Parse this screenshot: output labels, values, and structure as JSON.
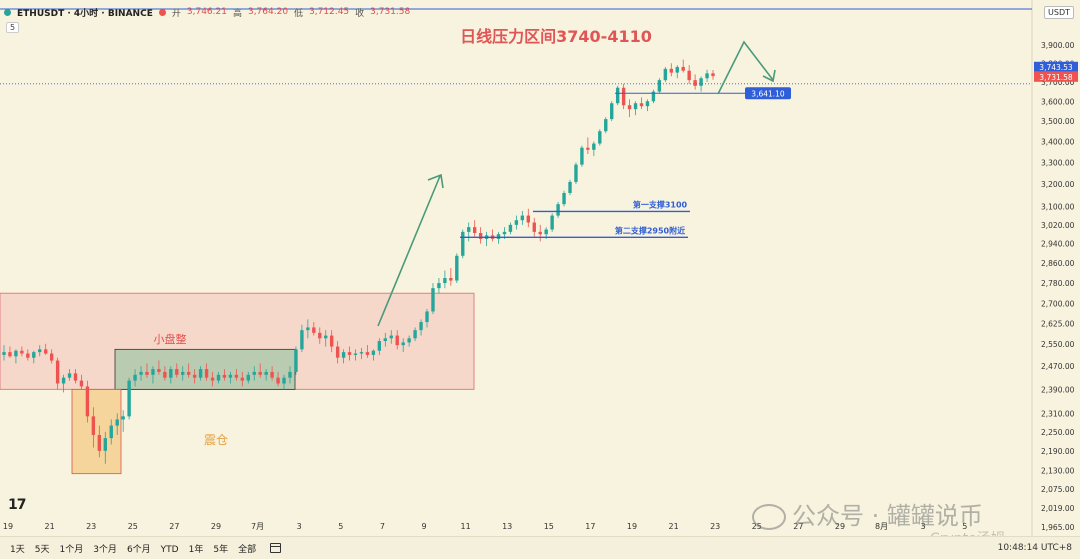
{
  "header": {
    "symbol": "ETHUSDT · 4小时 · BINANCE",
    "open_label": "开",
    "open": "3,746.21",
    "high_label": "高",
    "high": "3,764.20",
    "low_label": "低",
    "low": "3,712.45",
    "close_label": "收",
    "close": "3,731.58",
    "sub_indicator": "5",
    "unit": "USDT"
  },
  "annotations": {
    "title": "日线压力区间3740-4110",
    "consolidation": "小盘整",
    "shakeout": "震仓",
    "support1": "第一支撑3100",
    "support2": "第二支撑2950附近",
    "price_tag": "3,641.10"
  },
  "price_tags": {
    "current_high": "3,743.53",
    "current_close": "3,731.58"
  },
  "colors": {
    "up": "#26a69a",
    "down": "#ef5350",
    "title": "#e05555",
    "support": "#2f5ed8",
    "arrow": "#4a9a7a",
    "zone_red": "#f5cfc3",
    "zone_green": "#9fc8a8",
    "zone_orange": "#f6cf91"
  },
  "chart_data": {
    "type": "candlestick",
    "y_axis": {
      "scale": "log",
      "ticks": [
        "3,900.00",
        "3,800.00",
        "3,700.00",
        "3,600.00",
        "3,500.00",
        "3,400.00",
        "3,300.00",
        "3,200.00",
        "3,100.00",
        "3,020.00",
        "2,940.00",
        "2,860.00",
        "2,780.00",
        "2,700.00",
        "2,625.00",
        "2,550.00",
        "2,470.00",
        "2,390.00",
        "2,310.00",
        "2,250.00",
        "2,190.00",
        "2,130.00",
        "2,075.00",
        "2,019.00",
        "1,965.00"
      ]
    },
    "x_axis": {
      "ticks": [
        "19",
        "21",
        "23",
        "25",
        "27",
        "29",
        "7月",
        "3",
        "5",
        "7",
        "9",
        "11",
        "13",
        "15",
        "17",
        "19",
        "21",
        "23",
        "25",
        "27",
        "29",
        "8月",
        "3",
        "5"
      ]
    },
    "levels": {
      "support1": 3100,
      "support2": 2950,
      "marked_price": 3641.1,
      "current_high": 3743.53,
      "current_close": 3731.58
    },
    "zones": [
      {
        "label": "",
        "from": "19",
        "to": "11",
        "low": 2390,
        "high": 2740
      },
      {
        "label": "小盘整",
        "from": "24",
        "to": "3",
        "low": 2390,
        "high": 2530
      },
      {
        "label": "震仓",
        "from": "22",
        "to": "24",
        "low": 2120,
        "high": 2390
      }
    ],
    "candles": [
      [
        2510,
        2545,
        2490,
        2520
      ],
      [
        2520,
        2540,
        2500,
        2505
      ],
      [
        2505,
        2530,
        2480,
        2525
      ],
      [
        2525,
        2540,
        2505,
        2515
      ],
      [
        2515,
        2530,
        2490,
        2500
      ],
      [
        2500,
        2525,
        2480,
        2520
      ],
      [
        2520,
        2545,
        2505,
        2530
      ],
      [
        2530,
        2550,
        2510,
        2515
      ],
      [
        2515,
        2530,
        2480,
        2490
      ],
      [
        2490,
        2500,
        2390,
        2410
      ],
      [
        2410,
        2440,
        2380,
        2430
      ],
      [
        2430,
        2460,
        2420,
        2445
      ],
      [
        2445,
        2460,
        2410,
        2420
      ],
      [
        2420,
        2440,
        2390,
        2400
      ],
      [
        2400,
        2420,
        2280,
        2300
      ],
      [
        2300,
        2330,
        2200,
        2240
      ],
      [
        2240,
        2270,
        2170,
        2190
      ],
      [
        2190,
        2250,
        2150,
        2230
      ],
      [
        2230,
        2290,
        2210,
        2270
      ],
      [
        2270,
        2310,
        2240,
        2290
      ],
      [
        2290,
        2320,
        2250,
        2300
      ],
      [
        2300,
        2430,
        2290,
        2420
      ],
      [
        2420,
        2460,
        2400,
        2440
      ],
      [
        2440,
        2470,
        2420,
        2450
      ],
      [
        2450,
        2480,
        2430,
        2440
      ],
      [
        2440,
        2470,
        2410,
        2460
      ],
      [
        2460,
        2490,
        2440,
        2450
      ],
      [
        2450,
        2470,
        2420,
        2430
      ],
      [
        2430,
        2470,
        2410,
        2460
      ],
      [
        2460,
        2480,
        2430,
        2440
      ],
      [
        2440,
        2470,
        2420,
        2450
      ],
      [
        2450,
        2480,
        2430,
        2440
      ],
      [
        2440,
        2460,
        2410,
        2430
      ],
      [
        2430,
        2470,
        2420,
        2460
      ],
      [
        2460,
        2480,
        2420,
        2430
      ],
      [
        2430,
        2450,
        2400,
        2420
      ],
      [
        2420,
        2450,
        2410,
        2440
      ],
      [
        2440,
        2460,
        2420,
        2430
      ],
      [
        2430,
        2450,
        2410,
        2440
      ],
      [
        2440,
        2460,
        2420,
        2430
      ],
      [
        2430,
        2450,
        2400,
        2420
      ],
      [
        2420,
        2450,
        2410,
        2440
      ],
      [
        2440,
        2470,
        2420,
        2450
      ],
      [
        2450,
        2480,
        2430,
        2440
      ],
      [
        2440,
        2460,
        2420,
        2450
      ],
      [
        2450,
        2470,
        2420,
        2430
      ],
      [
        2430,
        2450,
        2400,
        2410
      ],
      [
        2410,
        2440,
        2390,
        2430
      ],
      [
        2430,
        2470,
        2410,
        2450
      ],
      [
        2450,
        2540,
        2440,
        2530
      ],
      [
        2530,
        2620,
        2520,
        2600
      ],
      [
        2600,
        2640,
        2570,
        2610
      ],
      [
        2610,
        2630,
        2580,
        2590
      ],
      [
        2590,
        2610,
        2550,
        2570
      ],
      [
        2570,
        2600,
        2540,
        2580
      ],
      [
        2580,
        2600,
        2520,
        2540
      ],
      [
        2540,
        2560,
        2480,
        2500
      ],
      [
        2500,
        2530,
        2480,
        2520
      ],
      [
        2520,
        2540,
        2490,
        2510
      ],
      [
        2510,
        2530,
        2490,
        2515
      ],
      [
        2515,
        2535,
        2495,
        2520
      ],
      [
        2520,
        2545,
        2500,
        2510
      ],
      [
        2510,
        2530,
        2490,
        2525
      ],
      [
        2525,
        2570,
        2510,
        2560
      ],
      [
        2560,
        2590,
        2540,
        2570
      ],
      [
        2570,
        2600,
        2550,
        2580
      ],
      [
        2580,
        2600,
        2530,
        2545
      ],
      [
        2545,
        2570,
        2520,
        2555
      ],
      [
        2555,
        2580,
        2540,
        2570
      ],
      [
        2570,
        2610,
        2560,
        2600
      ],
      [
        2600,
        2640,
        2580,
        2630
      ],
      [
        2630,
        2680,
        2610,
        2670
      ],
      [
        2670,
        2780,
        2660,
        2760
      ],
      [
        2760,
        2800,
        2740,
        2780
      ],
      [
        2780,
        2830,
        2760,
        2800
      ],
      [
        2800,
        2840,
        2770,
        2790
      ],
      [
        2790,
        2900,
        2780,
        2890
      ],
      [
        2890,
        3000,
        2880,
        2990
      ],
      [
        2990,
        3030,
        2950,
        3010
      ],
      [
        3010,
        3040,
        2970,
        2985
      ],
      [
        2985,
        3010,
        2940,
        2960
      ],
      [
        2960,
        2990,
        2930,
        2975
      ],
      [
        2975,
        3000,
        2950,
        2960
      ],
      [
        2960,
        2990,
        2940,
        2980
      ],
      [
        2980,
        3010,
        2960,
        2990
      ],
      [
        2990,
        3030,
        2980,
        3020
      ],
      [
        3020,
        3060,
        3000,
        3040
      ],
      [
        3040,
        3080,
        3020,
        3060
      ],
      [
        3060,
        3090,
        3010,
        3030
      ],
      [
        3030,
        3050,
        2970,
        2990
      ],
      [
        2990,
        3020,
        2950,
        2980
      ],
      [
        2980,
        3010,
        2960,
        3000
      ],
      [
        3000,
        3070,
        2990,
        3060
      ],
      [
        3060,
        3120,
        3050,
        3110
      ],
      [
        3110,
        3170,
        3100,
        3160
      ],
      [
        3160,
        3220,
        3150,
        3210
      ],
      [
        3210,
        3300,
        3200,
        3290
      ],
      [
        3290,
        3380,
        3280,
        3370
      ],
      [
        3370,
        3420,
        3340,
        3360
      ],
      [
        3360,
        3400,
        3330,
        3390
      ],
      [
        3390,
        3460,
        3380,
        3450
      ],
      [
        3450,
        3520,
        3440,
        3510
      ],
      [
        3510,
        3600,
        3500,
        3590
      ],
      [
        3590,
        3680,
        3580,
        3670
      ],
      [
        3670,
        3690,
        3560,
        3580
      ],
      [
        3580,
        3610,
        3520,
        3560
      ],
      [
        3560,
        3600,
        3530,
        3590
      ],
      [
        3590,
        3620,
        3560,
        3575
      ],
      [
        3575,
        3610,
        3550,
        3600
      ],
      [
        3600,
        3660,
        3590,
        3650
      ],
      [
        3650,
        3720,
        3640,
        3710
      ],
      [
        3710,
        3780,
        3700,
        3770
      ],
      [
        3770,
        3800,
        3730,
        3750
      ],
      [
        3750,
        3790,
        3720,
        3780
      ],
      [
        3780,
        3820,
        3750,
        3760
      ],
      [
        3760,
        3790,
        3690,
        3710
      ],
      [
        3710,
        3740,
        3660,
        3680
      ],
      [
        3680,
        3730,
        3650,
        3720
      ],
      [
        3720,
        3765,
        3700,
        3746
      ],
      [
        3746,
        3764,
        3712,
        3731
      ]
    ]
  },
  "bottombar": {
    "ranges": [
      "1天",
      "5天",
      "1个月",
      "3个月",
      "6个月",
      "YTD",
      "1年",
      "5年",
      "全部"
    ],
    "time": "10:48:14 UTC+8"
  },
  "watermark": {
    "text": "公众号 · 罐罐说币",
    "sub": "Crypto汤姆"
  }
}
